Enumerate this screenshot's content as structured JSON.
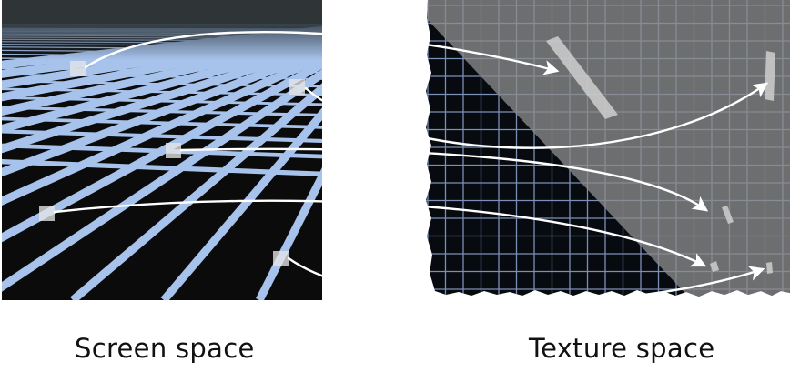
{
  "captions": {
    "screen": "Screen space",
    "texture": "Texture space"
  },
  "colors": {
    "grid_line": "#a7c3ec",
    "ground": "#0b0b0b",
    "sky": "#2f3436",
    "texture_bg": "#070b10",
    "texture_grid": "#7d8fb6",
    "footprint_region": "#7a7a7a",
    "arrow": "#ffffff"
  }
}
